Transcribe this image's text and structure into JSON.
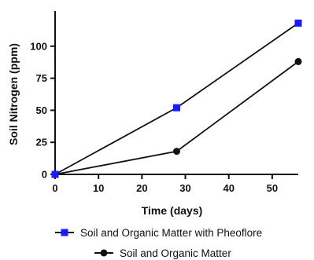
{
  "chart_data": {
    "type": "line",
    "xlabel": "Time (days)",
    "ylabel": "Soil Nitrogen (ppm)",
    "xlim": [
      0,
      56
    ],
    "ylim": [
      0,
      125
    ],
    "x_ticks": [
      "0",
      "10",
      "20",
      "30",
      "40",
      "50"
    ],
    "y_ticks": [
      "0",
      "25",
      "50",
      "75",
      "100"
    ],
    "grid": false,
    "legend": "bottom",
    "series": [
      {
        "name": "Soil and Organic Matter with Pheoflore",
        "marker": "square",
        "color": "#1a1aff",
        "x": [
          0,
          28,
          56
        ],
        "y": [
          0,
          52,
          118
        ]
      },
      {
        "name": "Soil and Organic Matter",
        "marker": "circle",
        "color": "#111111",
        "x": [
          0,
          28,
          56
        ],
        "y": [
          0,
          18,
          88
        ]
      }
    ]
  }
}
